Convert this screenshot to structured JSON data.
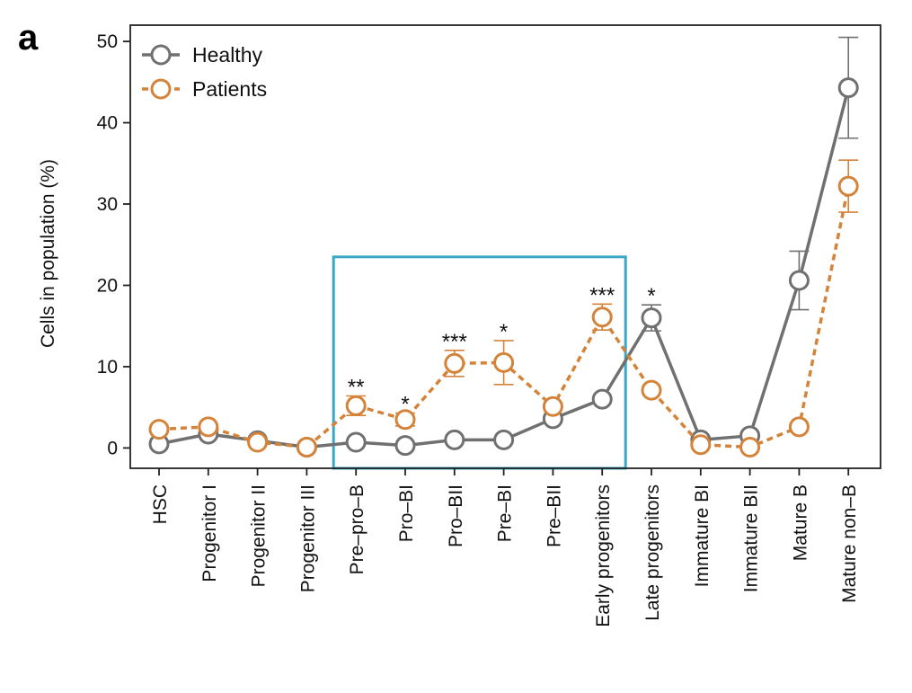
{
  "panel_label": "a",
  "colors": {
    "healthy": "#707070",
    "patients": "#d4843a",
    "highlight_box": "#3aa7c9",
    "axis": "#222222"
  },
  "chart_data": {
    "type": "line",
    "title": "",
    "xlabel": "",
    "ylabel": "Cells in population (%)",
    "ylim": [
      -2.5,
      52
    ],
    "yticks": [
      0,
      10,
      20,
      30,
      40,
      50
    ],
    "grid": false,
    "legend_placement": "top-left",
    "categories": [
      "HSC",
      "Progenitor I",
      "Progenitor II",
      "Progenitor III",
      "Pre–pro–B",
      "Pro–BI",
      "Pro–BII",
      "Pre–BI",
      "Pre–BII",
      "Early progenitors",
      "Late progenitors",
      "Immature BI",
      "Immature BII",
      "Mature B",
      "Mature non–B"
    ],
    "series": [
      {
        "name": "Healthy",
        "style": "solid",
        "values": [
          0.5,
          1.7,
          0.9,
          0.1,
          0.7,
          0.3,
          1.0,
          1.0,
          3.6,
          6.0,
          16.0,
          1.0,
          1.5,
          20.6,
          44.3
        ],
        "error": [
          0,
          0,
          0,
          0,
          0,
          0,
          0,
          0,
          0,
          0,
          1.6,
          0,
          0,
          3.6,
          6.2
        ]
      },
      {
        "name": "Patients",
        "style": "dashed",
        "values": [
          2.3,
          2.6,
          0.7,
          0.1,
          5.2,
          3.5,
          10.4,
          10.5,
          5.1,
          16.1,
          7.1,
          0.4,
          0.1,
          2.6,
          32.2
        ],
        "error": [
          0,
          0,
          0,
          0,
          1.2,
          0.8,
          1.6,
          2.7,
          0,
          1.6,
          0,
          0,
          0,
          0,
          3.2
        ]
      }
    ],
    "annotations": [
      {
        "category": "Pre–pro–B",
        "text": "**",
        "y": 5.2,
        "err": 1.2
      },
      {
        "category": "Pro–BI",
        "text": "*",
        "y": 3.5,
        "err": 0.8
      },
      {
        "category": "Pro–BII",
        "text": "***",
        "y": 10.4,
        "err": 1.6
      },
      {
        "category": "Pre–BI",
        "text": "*",
        "y": 10.5,
        "err": 2.7
      },
      {
        "category": "Early progenitors",
        "text": "***",
        "y": 16.1,
        "err": 1.6
      },
      {
        "category": "Late progenitors",
        "text": "*",
        "y": 16.0,
        "err": 1.6
      }
    ],
    "highlight_range": {
      "from": "Pre–pro–B",
      "to": "Early progenitors",
      "y_from": -2.5,
      "y_to": 23.5
    }
  }
}
